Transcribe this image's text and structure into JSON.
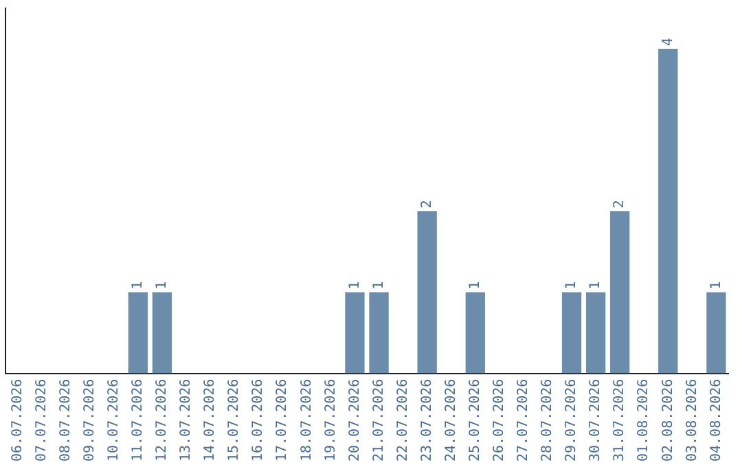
{
  "chart_data": {
    "type": "bar",
    "categories": [
      "06.07.2026",
      "07.07.2026",
      "08.07.2026",
      "09.07.2026",
      "10.07.2026",
      "11.07.2026",
      "12.07.2026",
      "13.07.2026",
      "14.07.2026",
      "15.07.2026",
      "16.07.2026",
      "17.07.2026",
      "18.07.2026",
      "19.07.2026",
      "20.07.2026",
      "21.07.2026",
      "22.07.2026",
      "23.07.2026",
      "24.07.2026",
      "25.07.2026",
      "26.07.2026",
      "27.07.2026",
      "28.07.2026",
      "29.07.2026",
      "30.07.2026",
      "31.07.2026",
      "01.08.2026",
      "02.08.2026",
      "03.08.2026",
      "04.08.2026"
    ],
    "values": [
      0,
      0,
      0,
      0,
      0,
      1,
      1,
      0,
      0,
      0,
      0,
      0,
      0,
      0,
      1,
      1,
      0,
      2,
      0,
      1,
      0,
      0,
      0,
      1,
      1,
      2,
      0,
      4,
      0,
      1
    ],
    "value_labels": [
      null,
      null,
      null,
      null,
      null,
      "1",
      "1",
      null,
      null,
      null,
      null,
      null,
      null,
      null,
      "1",
      "1",
      null,
      "2",
      null,
      "1",
      null,
      null,
      null,
      "1",
      "1",
      "2",
      null,
      "4",
      null,
      "1"
    ],
    "color": "#6b8cab",
    "grid": false,
    "legend": false,
    "tick_labels": "x"
  }
}
